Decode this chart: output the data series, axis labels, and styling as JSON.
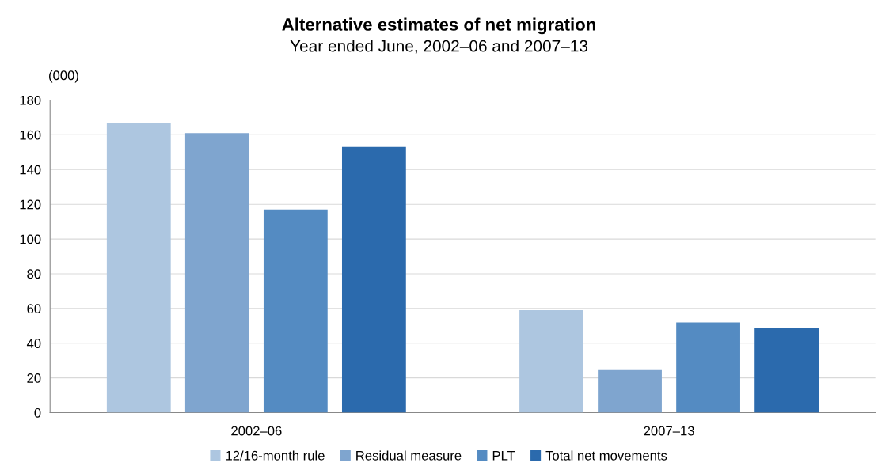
{
  "chart_data": {
    "type": "bar",
    "title": "Alternative estimates of net migration",
    "subtitle": "Year ended June, 2002–06 and 2007–13",
    "ylabel": "(000)",
    "categories": [
      "2002–06",
      "2007–13"
    ],
    "series": [
      {
        "name": "12/16-month rule",
        "color": "#adc6e0",
        "values": [
          167,
          59
        ]
      },
      {
        "name": "Residual measure",
        "color": "#7fa5cf",
        "values": [
          161,
          25
        ]
      },
      {
        "name": "PLT",
        "color": "#548bc2",
        "values": [
          117,
          52
        ]
      },
      {
        "name": "Total net movements",
        "color": "#2b6aad",
        "values": [
          153,
          49
        ]
      }
    ],
    "ylim": [
      0,
      180
    ],
    "yticks": [
      0,
      20,
      40,
      60,
      80,
      100,
      120,
      140,
      160,
      180
    ],
    "grid": "y",
    "legend": "bottom"
  }
}
